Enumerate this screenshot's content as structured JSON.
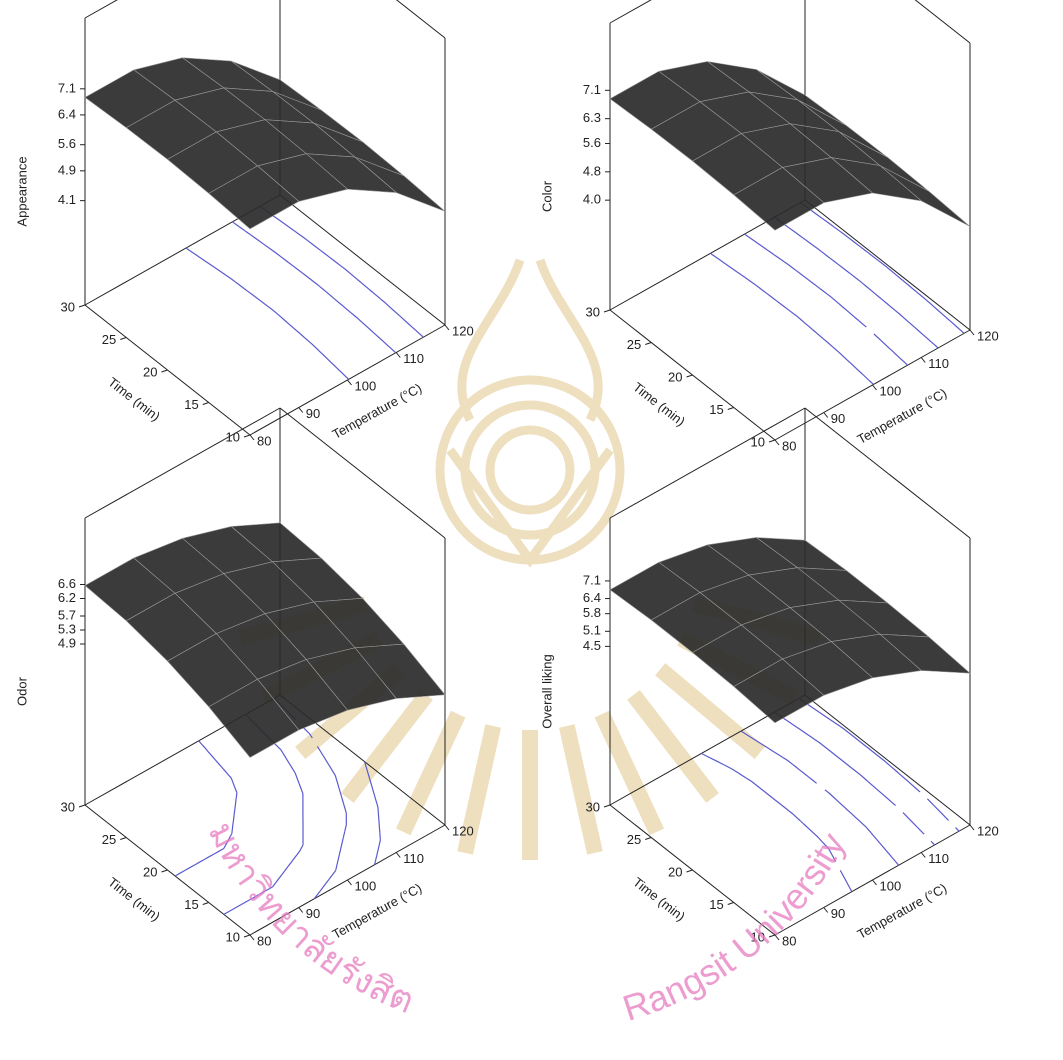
{
  "chart_data": [
    {
      "type": "surface",
      "zlabel": "Appearance",
      "xlabel": "Temperature (°C)",
      "ylabel": "Time (min)",
      "x": [
        80,
        90,
        100,
        110,
        120
      ],
      "y": [
        10,
        15,
        20,
        25,
        30
      ],
      "z": [
        [
          6.83,
          6.83,
          6.42,
          5.59,
          4.35
        ],
        [
          6.91,
          6.91,
          6.5,
          5.67,
          4.43
        ],
        [
          6.95,
          6.95,
          6.54,
          5.71,
          4.47
        ],
        [
          6.93,
          6.93,
          6.52,
          5.69,
          4.45
        ],
        [
          6.87,
          6.87,
          6.46,
          5.63,
          4.39
        ]
      ],
      "xlim": [
        80,
        120
      ],
      "ylim": [
        10,
        30
      ],
      "zlim": [
        1.3,
        9.0
      ],
      "xticks": [
        80,
        90,
        100,
        110,
        120
      ],
      "yticks": [
        10,
        15,
        20,
        25,
        30
      ],
      "zticks": [
        4.1,
        4.9,
        5.6,
        6.4,
        7.1
      ],
      "surface_color": "#2a2a2a",
      "contour_color": "#5a5ad0"
    },
    {
      "type": "surface",
      "zlabel": "Color",
      "xlabel": "Temperature (°C)",
      "ylabel": "Time (min)",
      "x": [
        80,
        90,
        100,
        110,
        120
      ],
      "y": [
        10,
        15,
        20,
        25,
        30
      ],
      "z": [
        [
          6.82,
          6.82,
          6.32,
          5.32,
          3.82
        ],
        [
          6.9,
          6.9,
          6.4,
          5.4,
          3.9
        ],
        [
          6.94,
          6.94,
          6.44,
          5.44,
          3.94
        ],
        [
          6.92,
          6.92,
          6.42,
          5.42,
          3.92
        ],
        [
          6.86,
          6.86,
          6.36,
          5.36,
          3.86
        ]
      ],
      "xlim": [
        80,
        120
      ],
      "ylim": [
        10,
        30
      ],
      "zlim": [
        0.9,
        9.0
      ],
      "xticks": [
        80,
        90,
        100,
        110,
        120
      ],
      "yticks": [
        10,
        15,
        20,
        25,
        30
      ],
      "zticks": [
        {
          "value": 4,
          "label": "4.0"
        },
        4.8,
        5.6,
        6.3,
        7.1
      ],
      "surface_color": "#2a2a2a",
      "contour_color": "#5a5ad0"
    },
    {
      "type": "surface",
      "zlabel": "Odor",
      "xlabel": "Temperature (°C)",
      "ylabel": "Time (min)",
      "x": [
        80,
        90,
        100,
        110,
        120
      ],
      "y": [
        10,
        15,
        20,
        25,
        30
      ],
      "z": [
        [
          5.37,
          5.37,
          5.15,
          4.7,
          4.02
        ],
        [
          5.89,
          5.89,
          5.67,
          5.22,
          4.54
        ],
        [
          6.27,
          6.27,
          6.05,
          5.6,
          4.92
        ],
        [
          6.49,
          6.49,
          6.27,
          5.82,
          5.14
        ],
        [
          6.57,
          6.57,
          6.35,
          5.9,
          5.22
        ]
      ],
      "xlim": [
        80,
        120
      ],
      "ylim": [
        10,
        30
      ],
      "zlim": [
        0.3,
        8.5
      ],
      "xticks": [
        80,
        90,
        100,
        110,
        120
      ],
      "yticks": [
        10,
        15,
        20,
        25,
        30
      ],
      "zticks": [
        4.9,
        5.3,
        5.7,
        6.2,
        6.6
      ],
      "surface_color": "#2a2a2a",
      "contour_color": "#5a5ad0"
    },
    {
      "type": "surface",
      "zlabel": "Overall liking",
      "xlabel": "Temperature (°C)",
      "ylabel": "Time (min)",
      "x": [
        80,
        90,
        100,
        110,
        120
      ],
      "y": [
        10,
        15,
        20,
        25,
        30
      ],
      "z": [
        [
          6.63,
          6.63,
          6.23,
          5.43,
          4.23
        ],
        [
          6.78,
          6.78,
          6.38,
          5.58,
          4.38
        ],
        [
          6.84,
          6.84,
          6.44,
          5.64,
          4.44
        ],
        [
          6.84,
          6.84,
          6.44,
          5.64,
          4.44
        ],
        [
          6.75,
          6.75,
          6.35,
          5.55,
          4.35
        ]
      ],
      "xlim": [
        80,
        120
      ],
      "ylim": [
        10,
        30
      ],
      "zlim": [
        -1.8,
        9.6
      ],
      "xticks": [
        80,
        90,
        100,
        110,
        120
      ],
      "yticks": [
        10,
        15,
        20,
        25,
        30
      ],
      "zticks": [
        4.5,
        5.1,
        5.8,
        6.4,
        7.1
      ],
      "surface_color": "#2a2a2a",
      "contour_color": "#5a5ad0"
    }
  ],
  "watermark": {
    "thai": "มหาวิทยาลัยรังสิต",
    "english": "Rangsit University"
  }
}
